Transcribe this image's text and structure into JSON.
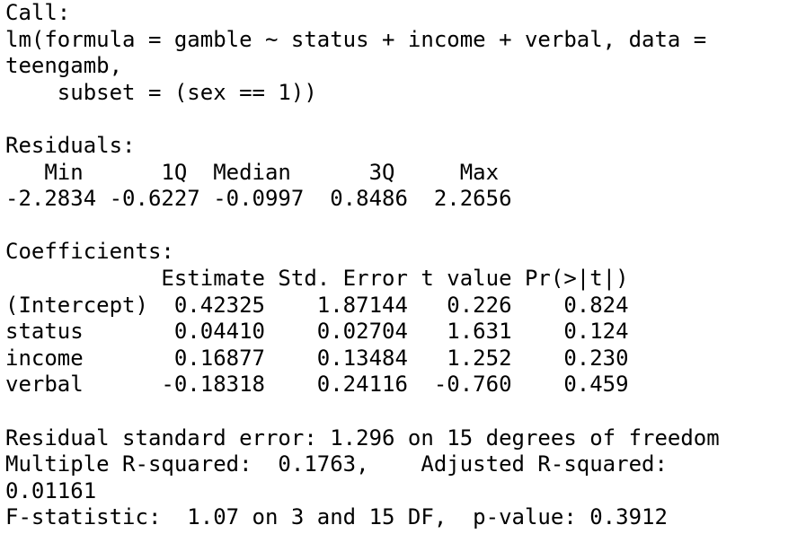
{
  "call": {
    "header": "Call:",
    "lines": [
      "lm(formula = gamble ~ status + income + verbal, data =",
      "teengamb,",
      "    subset = (sex == 1))"
    ]
  },
  "residuals": {
    "header": "Residuals:",
    "labels_row": "   Min      1Q  Median      3Q     Max ",
    "values_row": "-2.2834 -0.6227 -0.0997  0.8486  2.2656 "
  },
  "coefficients": {
    "header": "Coefficients:",
    "header_row": "            Estimate Std. Error t value Pr(>|t|)",
    "rows": [
      "(Intercept)  0.42325    1.87144   0.226    0.824",
      "status       0.04410    0.02704   1.631    0.124",
      "income       0.16877    0.13484   1.252    0.230",
      "verbal      -0.18318    0.24116  -0.760    0.459"
    ]
  },
  "summary": {
    "lines": [
      "Residual standard error: 1.296 on 15 degrees of freedom",
      "Multiple R-squared:  0.1763,    Adjusted R-squared:",
      "0.01161",
      "F-statistic:  1.07 on 3 and 15 DF,  p-value: 0.3912"
    ]
  }
}
